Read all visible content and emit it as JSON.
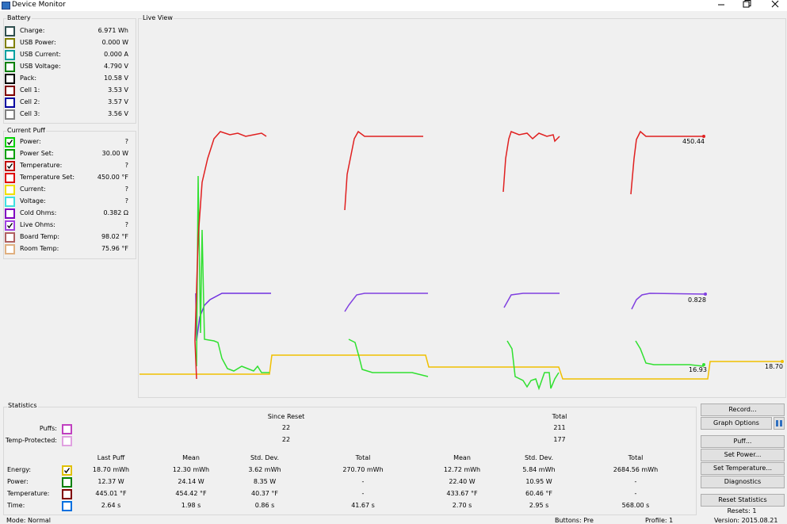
{
  "window": {
    "title": "Device Monitor"
  },
  "battery": {
    "title": "Battery",
    "items": [
      {
        "label": "Charge:",
        "value": "6.971 Wh",
        "color": "#2f4f4f",
        "checked": false
      },
      {
        "label": "USB Power:",
        "value": "0.000 W",
        "color": "#808000",
        "checked": false
      },
      {
        "label": "USB Current:",
        "value": "0.000 A",
        "color": "#00a0a0",
        "checked": false
      },
      {
        "label": "USB Voltage:",
        "value": "4.790 V",
        "color": "#008000",
        "checked": false
      },
      {
        "label": "Pack:",
        "value": "10.58 V",
        "color": "#000000",
        "checked": false
      },
      {
        "label": "Cell 1:",
        "value": "3.53 V",
        "color": "#800000",
        "checked": false
      },
      {
        "label": "Cell 2:",
        "value": "3.57 V",
        "color": "#0000a0",
        "checked": false
      },
      {
        "label": "Cell 3:",
        "value": "3.56 V",
        "color": "#808080",
        "checked": false
      }
    ]
  },
  "current_puff": {
    "title": "Current Puff",
    "items": [
      {
        "label": "Power:",
        "value": "?",
        "color": "#00d000",
        "checked": true
      },
      {
        "label": "Power Set:",
        "value": "30.00 W",
        "color": "#00a000",
        "checked": false
      },
      {
        "label": "Temperature:",
        "value": "?",
        "color": "#c00000",
        "checked": true
      },
      {
        "label": "Temperature Set:",
        "value": "450.00 °F",
        "color": "#e00000",
        "checked": false
      },
      {
        "label": "Current:",
        "value": "?",
        "color": "#f0e000",
        "checked": false
      },
      {
        "label": "Voltage:",
        "value": "?",
        "color": "#40e0e0",
        "checked": false
      },
      {
        "label": "Cold Ohms:",
        "value": "0.382 Ω",
        "color": "#8000c0",
        "checked": false
      },
      {
        "label": "Live Ohms:",
        "value": "?",
        "color": "#a040e0",
        "checked": true
      },
      {
        "label": "Board Temp:",
        "value": "98.02 °F",
        "color": "#b06060",
        "checked": false
      },
      {
        "label": "Room Temp:",
        "value": "75.96 °F",
        "color": "#e0b080",
        "checked": false
      }
    ]
  },
  "live_view": {
    "title": "Live View",
    "labels": [
      "450.44",
      "0.828",
      "16.93",
      "18.70"
    ]
  },
  "statistics": {
    "title": "Statistics",
    "since_reset": "Since Reset",
    "total": "Total",
    "counts": [
      {
        "label": "Puffs:",
        "since_reset": "22",
        "total": "211",
        "color": "#c040c0"
      },
      {
        "label": "Temp-Protected:",
        "since_reset": "22",
        "total": "177",
        "color": "#e0a0e0"
      }
    ],
    "columns": [
      "Last Puff",
      "Mean",
      "Std. Dev.",
      "Total",
      "Mean",
      "Std. Dev.",
      "Total"
    ],
    "rows": [
      {
        "label": "Energy:",
        "color": "#e0c000",
        "checked": true,
        "cells": [
          "18.70 mWh",
          "12.30 mWh",
          "3.62 mWh",
          "270.70 mWh",
          "12.72 mWh",
          "5.84 mWh",
          "2684.56 mWh"
        ]
      },
      {
        "label": "Power:",
        "color": "#008000",
        "checked": false,
        "cells": [
          "12.37 W",
          "24.14 W",
          "8.35 W",
          "-",
          "22.40 W",
          "10.95 W",
          "-"
        ]
      },
      {
        "label": "Temperature:",
        "color": "#800000",
        "checked": false,
        "cells": [
          "445.01 °F",
          "454.42 °F",
          "40.37 °F",
          "-",
          "433.67 °F",
          "60.46 °F",
          "-"
        ]
      },
      {
        "label": "Time:",
        "color": "#0070e0",
        "checked": false,
        "cells": [
          "2.64 s",
          "1.98 s",
          "0.86 s",
          "41.67 s",
          "2.70 s",
          "2.95 s",
          "568.00 s"
        ]
      }
    ]
  },
  "buttons": [
    "Record...",
    "Graph Options",
    "Puff...",
    "Set Power...",
    "Set Temperature...",
    "Diagnostics",
    "Reset Statistics"
  ],
  "resets": "Resets: 1",
  "status": [
    "Mode: Normal",
    "Buttons: Pre",
    "Profile: 1",
    "Version: 2015.08.21"
  ]
}
